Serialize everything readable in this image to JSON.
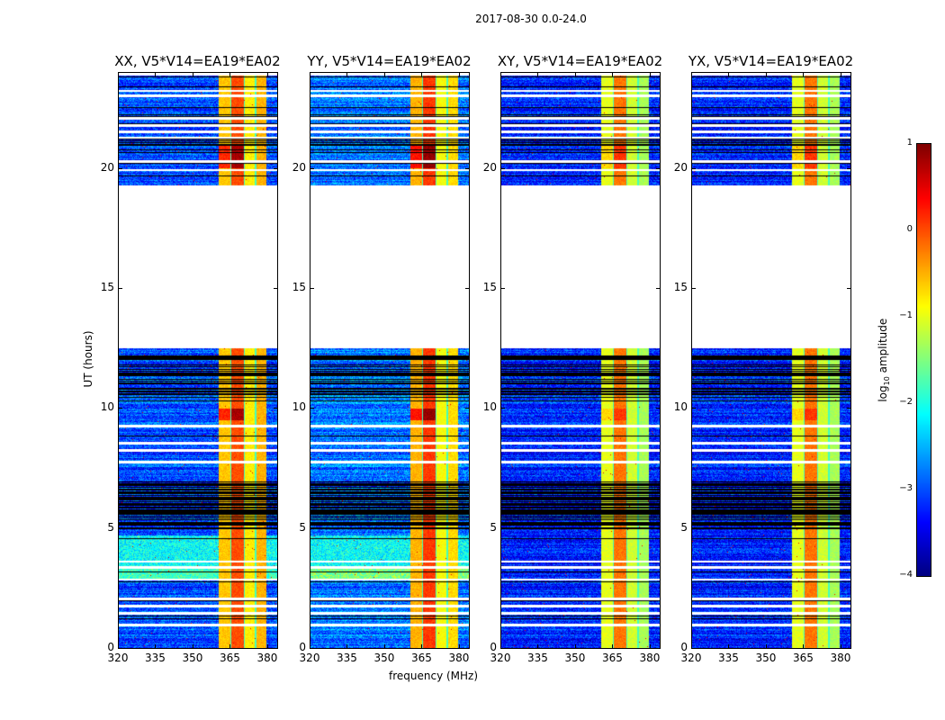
{
  "suptitle": "2017-08-30 0.0-24.0",
  "chart_data": {
    "type": "heatmap",
    "title": "2017-08-30 0.0-24.0",
    "xlabel": "frequency (MHz)",
    "ylabel": "UT (hours)",
    "xlim": [
      320,
      384
    ],
    "ylim": [
      0,
      24
    ],
    "xticks": [
      "320",
      "335",
      "350",
      "365",
      "380"
    ],
    "xtick_values": [
      320,
      335,
      350,
      365,
      380
    ],
    "yticks": [
      "0",
      "5",
      "10",
      "15",
      "20"
    ],
    "ytick_values": [
      0,
      5,
      10,
      15,
      20
    ],
    "panels": [
      {
        "title": "XX, V5*V14=EA19*EA02",
        "pol": "XX",
        "band_levels": [
          -0.6,
          0.0,
          -0.8,
          -0.5
        ],
        "background": -3.0
      },
      {
        "title": "YY, V5*V14=EA19*EA02",
        "pol": "YY",
        "band_levels": [
          -0.5,
          0.1,
          -0.9,
          -0.7
        ],
        "background": -2.8
      },
      {
        "title": "XY, V5*V14=EA19*EA02",
        "pol": "XY",
        "band_levels": [
          -1.0,
          -0.2,
          -1.1,
          -1.3
        ],
        "background": -3.2
      },
      {
        "title": "YX, V5*V14=EA19*EA02",
        "pol": "YX",
        "band_levels": [
          -1.0,
          -0.2,
          -1.1,
          -1.3
        ],
        "background": -3.2
      }
    ],
    "rfi_bands_mhz": [
      [
        360.5,
        365
      ],
      [
        365.5,
        370.5
      ],
      [
        371,
        375
      ],
      [
        375.5,
        379.5
      ]
    ],
    "no_data_hours": [
      [
        12.5,
        19.3
      ]
    ],
    "heavily_flagged_hours": [
      [
        4.9,
        7.0
      ],
      [
        10.2,
        12.2
      ]
    ],
    "colorbar": {
      "label_prefix": "log",
      "label_sub": "10",
      "label_suffix": " amplitude",
      "clim": [
        -4,
        1
      ],
      "ticks": [
        "1",
        "0",
        "−1",
        "−2",
        "−3",
        "−4"
      ],
      "tick_values": [
        1,
        0,
        -1,
        -2,
        -3,
        -4
      ],
      "colormap": "jet"
    }
  }
}
